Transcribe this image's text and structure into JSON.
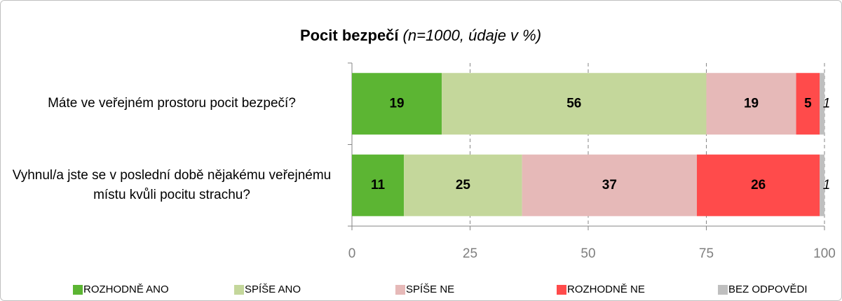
{
  "chart_data": {
    "type": "stacked-bar-horizontal",
    "title": "Pocit bezpečí",
    "subtitle": "(n=1000, údaje v %)",
    "categories": [
      "Máte ve veřejném prostoru pocit bezpečí?",
      "Vyhnul/a jste se v poslední době nějakému veřejnému místu kvůli pocitu strachu?"
    ],
    "series": [
      {
        "name": "ROZHODNĚ ANO",
        "color": "#5cb533",
        "values": [
          19,
          11
        ]
      },
      {
        "name": "SPÍŠE ANO",
        "color": "#c4d79b",
        "values": [
          56,
          25
        ]
      },
      {
        "name": "SPÍŠE NE",
        "color": "#e6b9b8",
        "values": [
          19,
          37
        ]
      },
      {
        "name": "ROZHODNĚ NE",
        "color": "#ff4b4b",
        "values": [
          5,
          26
        ]
      },
      {
        "name": "BEZ ODPOVĚDI",
        "color": "#bfbfbf",
        "values": [
          1,
          1
        ]
      }
    ],
    "xlim": [
      0,
      100
    ],
    "xticks": [
      0,
      25,
      50,
      75,
      100
    ],
    "grid": true,
    "legend": "bottom"
  }
}
